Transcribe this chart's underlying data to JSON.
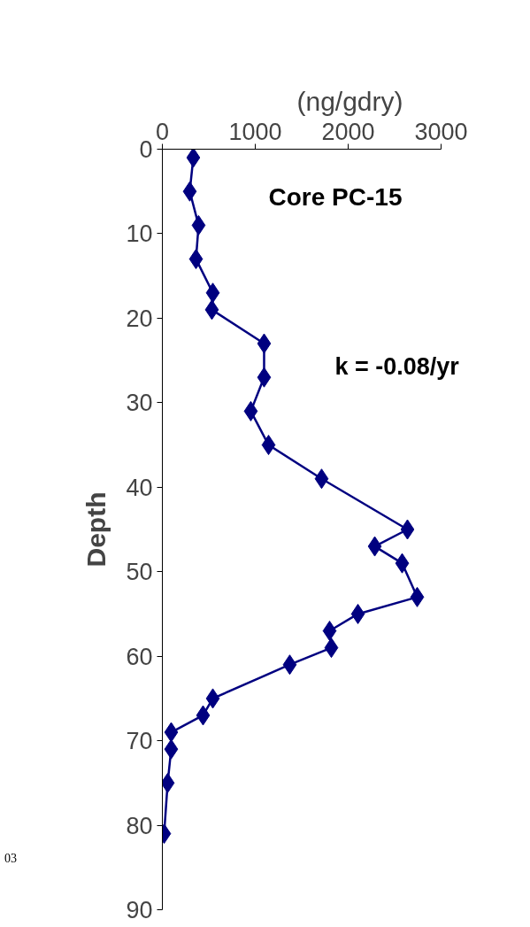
{
  "chart_data": {
    "type": "line",
    "xlabel": "(ng/gdry)",
    "ylabel": "Depth",
    "annotations": [
      "Core PC-15",
      "k = -0.08/yr",
      "03"
    ],
    "xlim": [
      0,
      3000
    ],
    "xticks": [
      0,
      1000,
      2000,
      3000
    ],
    "ylim": [
      90,
      0
    ],
    "yticks": [
      0,
      10,
      20,
      30,
      40,
      50,
      60,
      70,
      80,
      90
    ],
    "marker": "diamond",
    "line_style": "solid",
    "grid": false,
    "series": [
      {
        "color": "#000080",
        "x": [
          333,
          295,
          390,
          362,
          543,
          533,
          1095,
          1095,
          952,
          1143,
          1714,
          2638,
          2286,
          2581,
          2743,
          2105,
          1800,
          1819,
          1371,
          543,
          438,
          95,
          95,
          57,
          19
        ],
        "values": [
          1,
          5,
          9,
          13,
          17,
          19,
          23,
          27,
          31,
          35,
          39,
          45,
          47,
          49,
          53,
          55,
          57,
          59,
          61,
          65,
          67,
          69,
          71,
          75,
          81
        ]
      }
    ]
  }
}
